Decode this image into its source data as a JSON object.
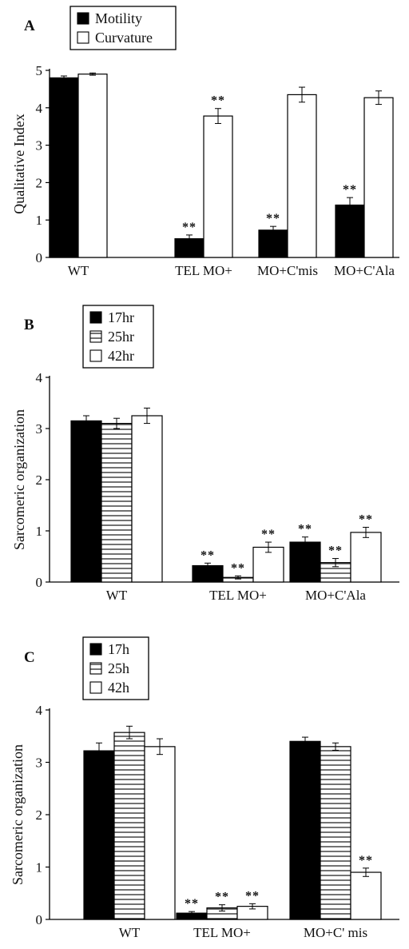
{
  "chart_data": [
    {
      "panel": "A",
      "type": "bar",
      "ylabel": "Qualitative Index",
      "xlabel": "",
      "ylim": [
        0,
        5
      ],
      "yticks": [
        0,
        1,
        2,
        3,
        4,
        5
      ],
      "categories": [
        "WT",
        "TEL MO+",
        "MO+C'mis",
        "MO+C'Ala"
      ],
      "legend_position": "top-left",
      "series": [
        {
          "name": "Motility",
          "fill": "solid",
          "values": [
            4.8,
            0.5,
            0.73,
            1.4
          ],
          "errors": [
            0.05,
            0.1,
            0.1,
            0.2
          ],
          "sig": [
            "",
            "**",
            "**",
            "**"
          ]
        },
        {
          "name": "Curvature",
          "fill": "open",
          "values": [
            4.9,
            3.78,
            4.35,
            4.27
          ],
          "errors": [
            0.03,
            0.2,
            0.2,
            0.18
          ],
          "sig": [
            "",
            "**",
            "",
            ""
          ]
        }
      ]
    },
    {
      "panel": "B",
      "type": "bar",
      "ylabel": "Sarcomeric organization",
      "xlabel": "",
      "ylim": [
        0,
        4
      ],
      "yticks": [
        0,
        1,
        2,
        3,
        4
      ],
      "categories": [
        "WT",
        "TEL MO+",
        "MO+C'Ala"
      ],
      "legend_position": "top-left",
      "series": [
        {
          "name": "17hr",
          "fill": "solid",
          "values": [
            3.15,
            0.32,
            0.78
          ],
          "errors": [
            0.1,
            0.05,
            0.1
          ],
          "sig": [
            "",
            "**",
            "**"
          ]
        },
        {
          "name": "25hr",
          "fill": "hlines",
          "values": [
            3.1,
            0.09,
            0.38
          ],
          "errors": [
            0.1,
            0.03,
            0.08
          ],
          "sig": [
            "",
            "**",
            "**"
          ]
        },
        {
          "name": "42hr",
          "fill": "open",
          "values": [
            3.25,
            0.68,
            0.97
          ],
          "errors": [
            0.15,
            0.1,
            0.1
          ],
          "sig": [
            "",
            "**",
            "**"
          ]
        }
      ]
    },
    {
      "panel": "C",
      "type": "bar",
      "ylabel": "Sarcomeric organization",
      "xlabel": "",
      "ylim": [
        0,
        4
      ],
      "yticks": [
        0,
        1,
        2,
        3,
        4
      ],
      "categories": [
        "WT",
        "TEL MO+",
        "MO+C' mis"
      ],
      "legend_position": "top-left",
      "series": [
        {
          "name": "17h",
          "fill": "solid",
          "values": [
            3.22,
            0.12,
            3.4
          ],
          "errors": [
            0.15,
            0.03,
            0.08
          ],
          "sig": [
            "",
            "**",
            ""
          ]
        },
        {
          "name": "25h",
          "fill": "hlines",
          "values": [
            3.57,
            0.22,
            3.3
          ],
          "errors": [
            0.12,
            0.06,
            0.07
          ],
          "sig": [
            "",
            "**",
            ""
          ]
        },
        {
          "name": "42h",
          "fill": "open",
          "values": [
            3.3,
            0.25,
            0.9
          ],
          "errors": [
            0.15,
            0.05,
            0.08
          ],
          "sig": [
            "",
            "**",
            "**"
          ]
        }
      ]
    }
  ]
}
